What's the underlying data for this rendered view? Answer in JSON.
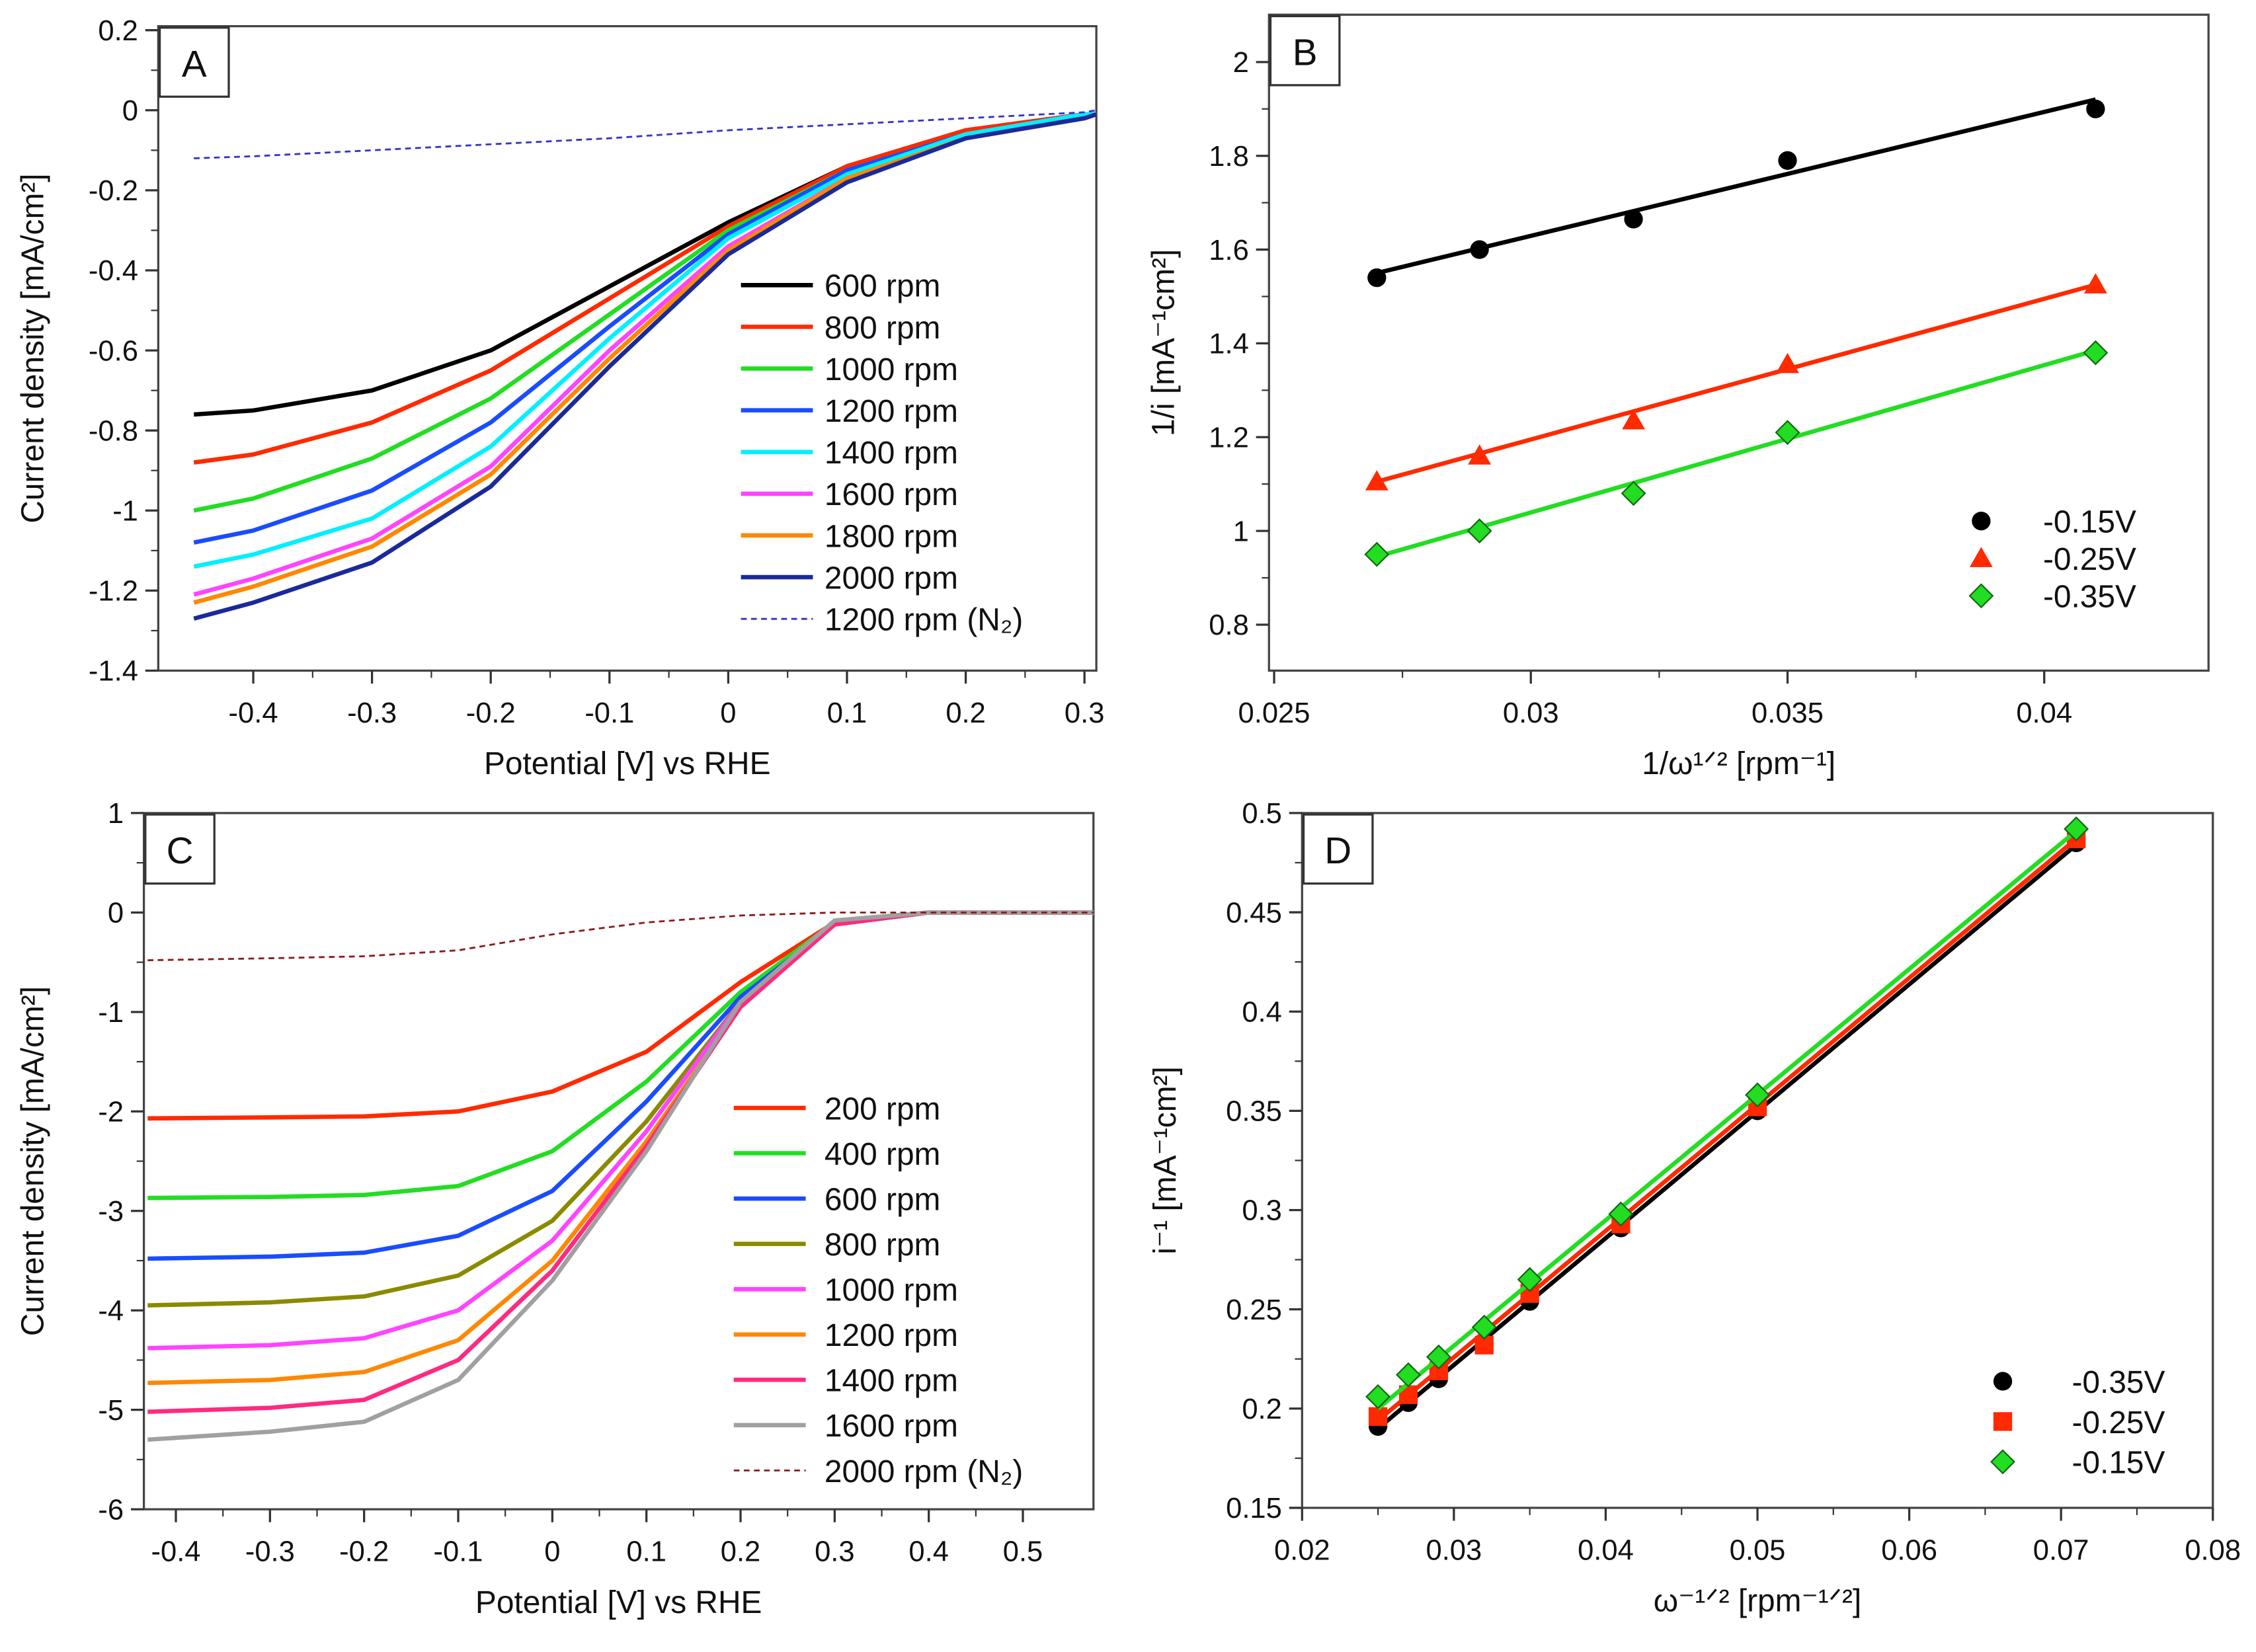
{
  "chart_data": [
    {
      "panel": "A",
      "type": "line",
      "xlabel": "Potential [V] vs RHE",
      "ylabel": "Current density [mA/cm²]",
      "xlim": [
        -0.48,
        0.31
      ],
      "ylim": [
        -1.4,
        0.21
      ],
      "xticks": [
        -0.4,
        -0.3,
        -0.2,
        -0.1,
        0,
        0.1,
        0.2,
        0.3
      ],
      "yticks": [
        0.2,
        0,
        -0.2,
        -0.4,
        -0.6,
        -0.8,
        -1,
        -1.2,
        -1.4
      ],
      "legend_position": "center-right",
      "x": [
        -0.45,
        -0.4,
        -0.3,
        -0.2,
        -0.1,
        0,
        0.1,
        0.2,
        0.3,
        0.31
      ],
      "series": [
        {
          "name": "600 rpm",
          "color": "#000000",
          "values": [
            -0.76,
            -0.75,
            -0.7,
            -0.6,
            -0.44,
            -0.28,
            -0.14,
            -0.05,
            -0.01,
            -0.01
          ]
        },
        {
          "name": "800 rpm",
          "color": "#ff2a00",
          "values": [
            -0.88,
            -0.86,
            -0.78,
            -0.65,
            -0.47,
            -0.29,
            -0.14,
            -0.05,
            -0.01,
            -0.01
          ]
        },
        {
          "name": "1000 rpm",
          "color": "#22dd22",
          "values": [
            -1.0,
            -0.97,
            -0.87,
            -0.72,
            -0.51,
            -0.3,
            -0.15,
            -0.06,
            -0.01,
            -0.01
          ]
        },
        {
          "name": "1200 rpm",
          "color": "#1a4cff",
          "values": [
            -1.08,
            -1.05,
            -0.95,
            -0.78,
            -0.54,
            -0.31,
            -0.15,
            -0.06,
            -0.01,
            -0.01
          ]
        },
        {
          "name": "1400 rpm",
          "color": "#00f0ff",
          "values": [
            -1.14,
            -1.11,
            -1.02,
            -0.84,
            -0.57,
            -0.32,
            -0.16,
            -0.06,
            -0.01,
            -0.01
          ]
        },
        {
          "name": "1600 rpm",
          "color": "#ff44ff",
          "values": [
            -1.21,
            -1.17,
            -1.07,
            -0.89,
            -0.6,
            -0.34,
            -0.17,
            -0.07,
            -0.02,
            -0.01
          ]
        },
        {
          "name": "1800 rpm",
          "color": "#ff8800",
          "values": [
            -1.23,
            -1.19,
            -1.09,
            -0.91,
            -0.62,
            -0.35,
            -0.17,
            -0.07,
            -0.02,
            -0.01
          ]
        },
        {
          "name": "2000 rpm",
          "color": "#1a2a99",
          "values": [
            -1.27,
            -1.23,
            -1.13,
            -0.94,
            -0.64,
            -0.36,
            -0.18,
            -0.07,
            -0.02,
            -0.01
          ]
        },
        {
          "name": "1200 rpm (N₂)",
          "color": "#3333cc",
          "dashed": true,
          "values": [
            -0.12,
            -0.115,
            -0.1,
            -0.085,
            -0.07,
            -0.05,
            -0.035,
            -0.02,
            -0.005,
            0
          ]
        }
      ]
    },
    {
      "panel": "B",
      "type": "scatter",
      "xlabel": "1/ω¹ᐟ² [rpm⁻¹]",
      "ylabel": "1/i [mA⁻¹cm²]",
      "xlim": [
        0.0249,
        0.0432
      ],
      "ylim": [
        0.702,
        2.101
      ],
      "xticks": [
        0.025,
        0.03,
        0.035,
        0.04
      ],
      "xtick_labels": [
        "0.025",
        "0.03",
        "0.035",
        "0.04"
      ],
      "yticks": [
        0.8,
        1,
        1.2,
        1.4,
        1.6,
        1.8,
        2
      ],
      "legend_position": "bottom-right",
      "x": [
        0.027,
        0.029,
        0.032,
        0.035,
        0.041
      ],
      "series": [
        {
          "name": "-0.15V",
          "color": "#000000",
          "marker": "circle",
          "values": [
            1.54,
            1.6,
            1.665,
            1.79,
            1.9
          ],
          "fit": [
            1.55,
            1.92
          ]
        },
        {
          "name": "-0.25V",
          "color": "#ff2a00",
          "marker": "triangle",
          "values": [
            1.105,
            1.16,
            1.235,
            1.355,
            1.525
          ],
          "fit": [
            1.105,
            1.525
          ]
        },
        {
          "name": "-0.35V",
          "color": "#22dd22",
          "marker": "diamond",
          "values": [
            0.95,
            1.0,
            1.08,
            1.21,
            1.38
          ],
          "fit": [
            0.945,
            1.385
          ]
        }
      ]
    },
    {
      "panel": "C",
      "type": "line",
      "xlabel": "Potential [V] vs RHE",
      "ylabel": "Current density [mA/cm²]",
      "xlim": [
        -0.434,
        0.575
      ],
      "ylim": [
        -6,
        1
      ],
      "xticks": [
        -0.4,
        -0.3,
        -0.2,
        -0.1,
        0,
        0.1,
        0.2,
        0.3,
        0.4,
        0.5
      ],
      "yticks": [
        1,
        0,
        -1,
        -2,
        -3,
        -4,
        -5,
        -6
      ],
      "legend_position": "center-right",
      "x": [
        -0.43,
        -0.3,
        -0.2,
        -0.1,
        0,
        0.1,
        0.2,
        0.3,
        0.4,
        0.575
      ],
      "series": [
        {
          "name": "200 rpm",
          "color": "#ff2a00",
          "values": [
            -2.07,
            -2.06,
            -2.05,
            -2.0,
            -1.8,
            -1.4,
            -0.7,
            -0.1,
            0,
            0
          ]
        },
        {
          "name": "400 rpm",
          "color": "#22dd22",
          "values": [
            -2.87,
            -2.86,
            -2.84,
            -2.75,
            -2.4,
            -1.7,
            -0.8,
            -0.1,
            0,
            0
          ]
        },
        {
          "name": "600 rpm",
          "color": "#1a4cff",
          "values": [
            -3.48,
            -3.46,
            -3.42,
            -3.25,
            -2.8,
            -1.9,
            -0.85,
            -0.12,
            0,
            0
          ]
        },
        {
          "name": "800 rpm",
          "color": "#8a8a00",
          "values": [
            -3.95,
            -3.92,
            -3.86,
            -3.65,
            -3.1,
            -2.1,
            -0.9,
            -0.12,
            0,
            0
          ]
        },
        {
          "name": "1000 rpm",
          "color": "#ff44ff",
          "values": [
            -4.38,
            -4.35,
            -4.28,
            -4.0,
            -3.3,
            -2.2,
            -0.9,
            -0.12,
            0,
            0
          ]
        },
        {
          "name": "1200 rpm",
          "color": "#ff8800",
          "values": [
            -4.73,
            -4.7,
            -4.62,
            -4.3,
            -3.5,
            -2.3,
            -0.95,
            -0.12,
            0,
            0
          ]
        },
        {
          "name": "1400 rpm",
          "color": "#ff2a80",
          "values": [
            -5.02,
            -4.98,
            -4.9,
            -4.5,
            -3.6,
            -2.35,
            -0.95,
            -0.12,
            0,
            0
          ]
        },
        {
          "name": "1600 rpm",
          "color": "#a0a0a0",
          "values": [
            -5.3,
            -5.22,
            -5.12,
            -4.7,
            -3.7,
            -2.4,
            -0.9,
            -0.08,
            0,
            0
          ]
        },
        {
          "name": "2000 rpm (N₂)",
          "color": "#8b1a1a",
          "dashed": true,
          "values": [
            -0.48,
            -0.46,
            -0.44,
            -0.38,
            -0.22,
            -0.1,
            -0.03,
            0,
            0,
            0
          ]
        }
      ]
    },
    {
      "panel": "D",
      "type": "scatter",
      "xlabel": "ω⁻¹ᐟ² [rpm⁻¹ᐟ²]",
      "ylabel": "i⁻¹ [mA⁻¹cm²]",
      "xlim": [
        0.02,
        0.08
      ],
      "ylim": [
        0.15,
        0.5
      ],
      "xticks": [
        0.02,
        0.03,
        0.04,
        0.05,
        0.06,
        0.07,
        0.08
      ],
      "yticks": [
        0.15,
        0.2,
        0.25,
        0.3,
        0.35,
        0.4,
        0.45,
        0.5
      ],
      "legend_position": "bottom-right",
      "x": [
        0.025,
        0.027,
        0.029,
        0.032,
        0.035,
        0.041,
        0.05,
        0.071
      ],
      "series": [
        {
          "name": "-0.35V",
          "color": "#000000",
          "marker": "circle",
          "values": [
            0.191,
            0.203,
            0.215,
            0.233,
            0.254,
            0.291,
            0.35,
            0.485
          ],
          "fit": [
            0.19,
            0.484
          ]
        },
        {
          "name": "-0.25V",
          "color": "#ff2a00",
          "marker": "square",
          "values": [
            0.196,
            0.207,
            0.219,
            0.232,
            0.258,
            0.293,
            0.352,
            0.487
          ],
          "fit": [
            0.194,
            0.487
          ]
        },
        {
          "name": "-0.15V",
          "color": "#22dd22",
          "marker": "diamond",
          "values": [
            0.206,
            0.217,
            0.226,
            0.241,
            0.265,
            0.298,
            0.358,
            0.492
          ],
          "fit": [
            0.2,
            0.491
          ]
        }
      ]
    }
  ]
}
